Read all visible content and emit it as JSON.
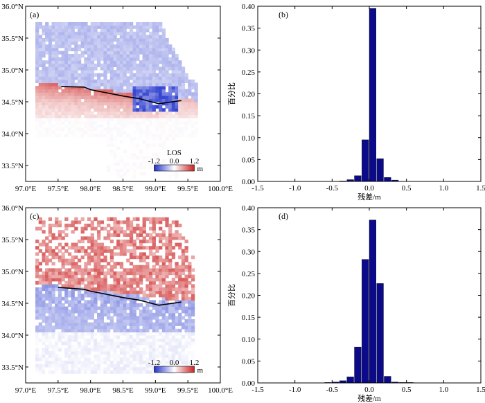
{
  "chart_data": [
    {
      "id": "a",
      "type": "heatmap",
      "panel_label": "(a)",
      "xlim": [
        97.0,
        100.0
      ],
      "ylim": [
        33.25,
        36.0
      ],
      "x_ticks": [
        97.0,
        97.5,
        98.0,
        98.5,
        99.0,
        99.5,
        100.0
      ],
      "x_tick_labels": [
        "97.0°E",
        "97.5°E",
        "98.0°E",
        "98.5°E",
        "99.0°E",
        "99.5°E",
        "100.0°E"
      ],
      "y_ticks": [
        33.5,
        34.0,
        34.5,
        35.0,
        35.5,
        36.0
      ],
      "y_tick_labels": [
        "33.5°N",
        "34.0°N",
        "34.5°N",
        "35.0°N",
        "35.5°N",
        "36.0°N"
      ],
      "fault_trace": [
        [
          97.55,
          34.74
        ],
        [
          97.9,
          34.73
        ],
        [
          98.0,
          34.69
        ],
        [
          98.5,
          34.59
        ],
        [
          98.75,
          34.55
        ],
        [
          99.05,
          34.47
        ],
        [
          99.4,
          34.52
        ]
      ],
      "colorbar": {
        "title": "LOS",
        "min": -1.2,
        "max": 1.2,
        "tick_labels": [
          "-1.2",
          "0.0",
          "1.2"
        ],
        "unit": "m"
      },
      "colors": {
        "negative": "#2233cc",
        "positive": "#cc2222"
      }
    },
    {
      "id": "b",
      "type": "bar",
      "panel_label": "(b)",
      "xlabel": "残差/m",
      "ylabel": "百分比",
      "xlim": [
        -1.5,
        1.5
      ],
      "ylim": [
        0,
        0.4
      ],
      "x_tick_labels": [
        "-1.5",
        "-1.0",
        "-0.5",
        "0.0",
        "0.5",
        "1.0",
        "1.5"
      ],
      "y_tick_labels": [
        "0.00",
        "0.05",
        "0.10",
        "0.15",
        "0.20",
        "0.25",
        "0.30",
        "0.35",
        "0.40"
      ],
      "bin_centers": [
        -0.35,
        -0.25,
        -0.15,
        -0.05,
        0.05,
        0.15,
        0.25,
        0.35
      ],
      "values": [
        0.001,
        0.004,
        0.013,
        0.095,
        0.395,
        0.052,
        0.009,
        0.003
      ],
      "bar_color": "#0a0a8a"
    },
    {
      "id": "c",
      "type": "heatmap",
      "panel_label": "(c)",
      "xlim": [
        97.0,
        100.0
      ],
      "ylim": [
        33.25,
        36.0
      ],
      "x_ticks": [
        97.0,
        97.5,
        98.0,
        98.5,
        99.0,
        99.5,
        100.0
      ],
      "x_tick_labels": [
        "97.0°E",
        "97.5°E",
        "98.0°E",
        "98.5°E",
        "99.0°E",
        "99.5°E",
        "100.0°E"
      ],
      "y_ticks": [
        33.5,
        34.0,
        34.5,
        35.0,
        35.5,
        36.0
      ],
      "y_tick_labels": [
        "33.5°N",
        "34.0°N",
        "34.5°N",
        "35.0°N",
        "35.5°N",
        "36.0°N"
      ],
      "fault_trace": [
        [
          97.5,
          34.75
        ],
        [
          97.9,
          34.72
        ],
        [
          98.0,
          34.69
        ],
        [
          98.5,
          34.59
        ],
        [
          98.75,
          34.55
        ],
        [
          99.05,
          34.47
        ],
        [
          99.4,
          34.52
        ]
      ],
      "colorbar": {
        "min": -1.2,
        "max": 1.2,
        "tick_labels": [
          "-1.2",
          "0.0",
          "1.2"
        ],
        "unit": "m"
      },
      "colors": {
        "negative": "#2233cc",
        "positive": "#cc2222"
      }
    },
    {
      "id": "d",
      "type": "bar",
      "panel_label": "(d)",
      "xlabel": "残差/m",
      "ylabel": "百分比",
      "xlim": [
        -1.5,
        1.5
      ],
      "ylim": [
        0,
        0.4
      ],
      "x_tick_labels": [
        "-1.5",
        "-1.0",
        "-0.5",
        "0.0",
        "0.5",
        "1.0",
        "1.5"
      ],
      "y_tick_labels": [
        "0.00",
        "0.05",
        "0.10",
        "0.15",
        "0.20",
        "0.25",
        "0.30",
        "0.35",
        "0.40"
      ],
      "bin_centers": [
        -0.55,
        -0.45,
        -0.35,
        -0.25,
        -0.15,
        -0.05,
        0.05,
        0.15,
        0.25,
        0.35,
        0.45,
        0.55
      ],
      "values": [
        0.001,
        0.002,
        0.005,
        0.014,
        0.082,
        0.282,
        0.372,
        0.227,
        0.015,
        0.002,
        0.001,
        0.001
      ],
      "bar_color": "#0a0a8a"
    }
  ]
}
